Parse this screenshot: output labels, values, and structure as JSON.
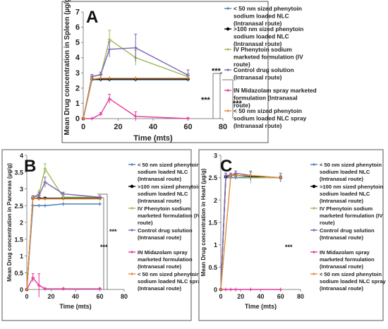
{
  "chart_data": [
    {
      "type": "line",
      "panel_label": "A",
      "ylabel": "Mean Drug concentration in Spleen (µg/g)",
      "xlabel": "Time (mts)",
      "xlim": [
        0,
        80
      ],
      "ylim": [
        0,
        7
      ],
      "x_ticks": [
        "0",
        "20",
        "40",
        "60",
        "80"
      ],
      "y_ticks": [
        "0",
        "1",
        "2",
        "3",
        "4",
        "5",
        "6",
        "7"
      ],
      "annotations": [
        "***",
        "***",
        "***"
      ],
      "legend_position": "right",
      "series": [
        {
          "name": "< 50 nm sized phenytoin sodium loaded NLC (Intranasal route)",
          "color": "#4a7ebb",
          "marker": "plus",
          "points": [
            [
              0,
              0
            ],
            [
              5,
              2.55
            ],
            [
              10,
              2.55
            ],
            [
              15,
              2.55
            ],
            [
              30,
              2.55
            ],
            [
              60,
              2.55
            ]
          ]
        },
        {
          "name": ">100 nm sized phenytoin sodium loaded NLC (Intranasal route)",
          "color": "#000000",
          "marker": "circle",
          "points": [
            [
              0,
              0
            ],
            [
              5,
              2.6
            ],
            [
              10,
              2.6
            ],
            [
              15,
              2.6
            ],
            [
              30,
              2.6
            ],
            [
              60,
              2.6
            ]
          ]
        },
        {
          "name": "IV Phenytoin sodium marketed formulation (IV route)",
          "color": "#9bbb59",
          "marker": "plus",
          "points": [
            [
              0,
              0
            ],
            [
              5,
              2.8
            ],
            [
              10,
              2.85
            ],
            [
              15,
              5.2
            ],
            [
              30,
              4.0
            ],
            [
              60,
              2.75
            ]
          ],
          "errors": [
            0,
            0.1,
            0.1,
            0.6,
            0.5,
            0.2
          ]
        },
        {
          "name": "Control drug solution (Intranasal route)",
          "color": "#7e62b5",
          "marker": "plus",
          "points": [
            [
              0,
              0
            ],
            [
              5,
              2.75
            ],
            [
              10,
              2.9
            ],
            [
              15,
              4.55
            ],
            [
              30,
              4.65
            ],
            [
              60,
              2.85
            ]
          ],
          "errors": [
            0,
            0.15,
            0.15,
            0.5,
            0.9,
            0.35
          ]
        },
        {
          "name": "IN Midazolam spray marketed formulation (Intranasal route)",
          "color": "#e6399b",
          "marker": "plus",
          "points": [
            [
              0,
              0
            ],
            [
              5,
              0
            ],
            [
              10,
              0.3
            ],
            [
              15,
              1.3
            ],
            [
              30,
              0.15
            ],
            [
              60,
              0.0
            ]
          ],
          "errors": [
            0,
            0,
            0.1,
            0.3,
            0.3,
            0.05
          ]
        },
        {
          "name": "< 50 nm sized phenytoin sodium loaded NLC spray (Intranasal route)",
          "color": "#e58c3a",
          "marker": "plus",
          "points": [
            [
              0,
              0
            ],
            [
              5,
              2.6
            ],
            [
              10,
              2.65
            ],
            [
              15,
              2.65
            ],
            [
              30,
              2.65
            ],
            [
              60,
              2.65
            ]
          ]
        }
      ]
    },
    {
      "type": "line",
      "panel_label": "B",
      "ylabel": "Mean Drug concentration in Pancreas (µg/g)",
      "xlabel": "Time (mts)",
      "xlim": [
        0,
        80
      ],
      "ylim": [
        0,
        4
      ],
      "x_ticks": [
        "0",
        "20",
        "40",
        "60",
        "80"
      ],
      "y_ticks": [
        "0",
        "0.5",
        "1",
        "1.5",
        "2",
        "2.5",
        "3",
        "3.5",
        "4"
      ],
      "annotations": [
        "***",
        "***"
      ],
      "legend_position": "right",
      "series": [
        {
          "name": "< 50 nm sized phenytoin sodium loaded NLC (Intranasal route)",
          "color": "#4a7ebb",
          "marker": "plus",
          "points": [
            [
              0,
              0
            ],
            [
              5,
              2.5
            ],
            [
              10,
              2.5
            ],
            [
              15,
              2.5
            ],
            [
              30,
              2.55
            ],
            [
              60,
              2.55
            ]
          ]
        },
        {
          "name": ">100 nm sized phenytoin sodium loaded NLC (Intranasal route)",
          "color": "#000000",
          "marker": "circle",
          "points": [
            [
              0,
              0
            ],
            [
              5,
              2.72
            ],
            [
              10,
              2.72
            ],
            [
              15,
              2.72
            ],
            [
              30,
              2.72
            ],
            [
              60,
              2.72
            ]
          ]
        },
        {
          "name": "IV Phenytoin sodium marketed formulation (IV route)",
          "color": "#9bbb59",
          "marker": "plus",
          "points": [
            [
              0,
              0
            ],
            [
              5,
              2.75
            ],
            [
              10,
              2.85
            ],
            [
              15,
              3.6
            ],
            [
              30,
              2.75
            ],
            [
              60,
              2.75
            ]
          ],
          "errors": [
            0,
            0.05,
            0.1,
            0.15,
            0.05,
            0.05
          ]
        },
        {
          "name": "Control drug solution (Intranasal route)",
          "color": "#7e62b5",
          "marker": "plus",
          "points": [
            [
              0,
              0
            ],
            [
              5,
              2.75
            ],
            [
              10,
              2.8
            ],
            [
              15,
              3.2
            ],
            [
              30,
              2.85
            ],
            [
              60,
              2.75
            ]
          ],
          "errors": [
            0,
            0.05,
            0.1,
            0.15,
            0.05,
            0.05
          ]
        },
        {
          "name": "IN Midazolam spray marketed formulation (Intranasal route)",
          "color": "#e6399b",
          "marker": "plus",
          "points": [
            [
              0,
              0
            ],
            [
              5,
              0.35
            ],
            [
              10,
              0.12
            ],
            [
              15,
              0.02
            ],
            [
              30,
              0.02
            ],
            [
              60,
              0.02
            ]
          ],
          "errors": [
            0,
            0.12,
            0.35,
            0.02,
            0.02,
            0.02
          ]
        },
        {
          "name": "< 50 nm sized phenytoin sodium loaded NLC spray (Intranasal route)",
          "color": "#e58c3a",
          "marker": "plus",
          "points": [
            [
              0,
              0
            ],
            [
              5,
              2.72
            ],
            [
              10,
              2.7
            ],
            [
              15,
              2.7
            ],
            [
              30,
              2.7
            ],
            [
              60,
              2.7
            ]
          ]
        }
      ]
    },
    {
      "type": "line",
      "panel_label": "C",
      "ylabel": "Mean Drug concentration in Heart (µg/g)",
      "xlabel": "Time (mts)",
      "xlim": [
        0,
        80
      ],
      "ylim": [
        0,
        3
      ],
      "x_ticks": [
        "0",
        "20",
        "40",
        "60",
        "80"
      ],
      "y_ticks": [
        "0",
        "0.5",
        "1",
        "1.5",
        "2",
        "2.5",
        "3"
      ],
      "annotations": [
        "***"
      ],
      "legend_position": "right",
      "series": [
        {
          "name": "< 50 nm sized phenytoin sodium loaded NLC (Intranasal route)",
          "color": "#4a7ebb",
          "marker": "plus",
          "points": [
            [
              0,
              0
            ],
            [
              5,
              2.5
            ],
            [
              10,
              2.5
            ],
            [
              15,
              2.5
            ],
            [
              30,
              2.5
            ],
            [
              60,
              2.5
            ]
          ]
        },
        {
          "name": ">100 nm sized phenytoin sodium loaded NLC (Intranasal route)",
          "color": "#000000",
          "marker": "circle",
          "points": [
            [
              0,
              0
            ],
            [
              5,
              2.52
            ],
            [
              10,
              2.55
            ],
            [
              15,
              2.55
            ],
            [
              30,
              2.52
            ],
            [
              60,
              2.5
            ]
          ]
        },
        {
          "name": "IV Phenytoin sodium marketed formulation (IV route)",
          "color": "#9bbb59",
          "marker": "plus",
          "points": [
            [
              0,
              0
            ],
            [
              5,
              2.55
            ],
            [
              10,
              2.55
            ],
            [
              15,
              2.55
            ],
            [
              30,
              2.5
            ],
            [
              60,
              2.5
            ]
          ],
          "errors": [
            0,
            0.05,
            0.05,
            0.05,
            0.12,
            0.05
          ]
        },
        {
          "name": "Control drug solution (Intranasal route)",
          "color": "#7e62b5",
          "marker": "plus",
          "points": [
            [
              0,
              0
            ],
            [
              5,
              2.55
            ],
            [
              10,
              2.55
            ],
            [
              15,
              2.6
            ],
            [
              30,
              2.55
            ],
            [
              60,
              2.5
            ]
          ],
          "errors": [
            0,
            0.05,
            0.05,
            0.05,
            0.1,
            0.1
          ]
        },
        {
          "name": "IN Midazolam spray marketed formulation (Intranasal route)",
          "color": "#e6399b",
          "marker": "plus",
          "points": [
            [
              0,
              0
            ],
            [
              5,
              0
            ],
            [
              10,
              0
            ],
            [
              15,
              0
            ],
            [
              30,
              0
            ],
            [
              60,
              0
            ]
          ]
        },
        {
          "name": "< 50 nm sized phenytoin sodium loaded NLC spray (Intranasal route)",
          "color": "#e58c3a",
          "marker": "plus",
          "points": [
            [
              0,
              0
            ],
            [
              10,
              2.55
            ],
            [
              15,
              2.55
            ],
            [
              30,
              2.55
            ],
            [
              60,
              2.5
            ]
          ]
        }
      ]
    }
  ]
}
